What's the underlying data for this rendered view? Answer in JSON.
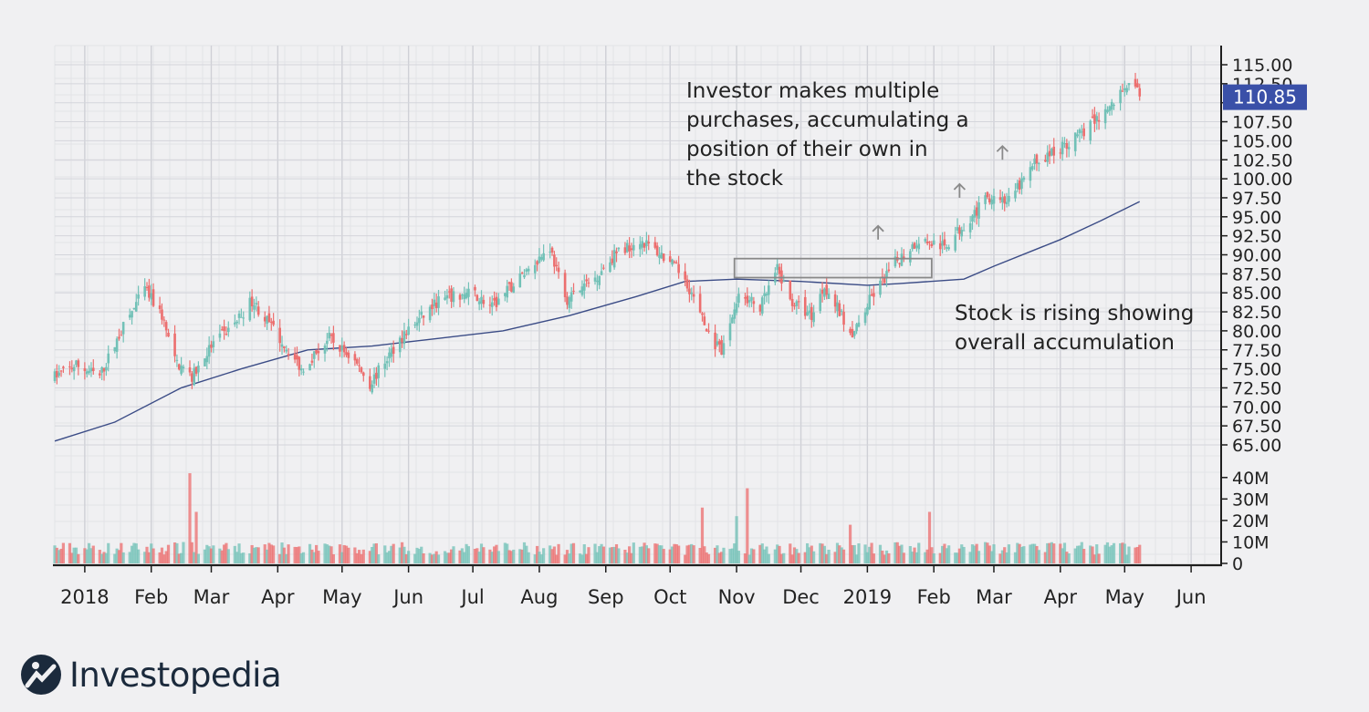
{
  "logo": {
    "wordmark": "Investopedia",
    "icon": "investopedia-logo-icon"
  },
  "annotations": {
    "purchases": "Investor makes multiple\npurchases, accumulating a\nposition of their own in\nthe stock",
    "rising": "Stock is rising showing\noverall accumulation"
  },
  "colors": {
    "up": "#72c1b7",
    "down": "#ec6e6e",
    "ma": "#3b4c86",
    "price_tag": "#3a50a8",
    "grid": "#d6d7dc",
    "axis": "#1e1e1e"
  },
  "chart_data": {
    "type": "candlestick",
    "title": "",
    "xlabel": "",
    "ylabel": "",
    "price_axis": {
      "ylim": [
        65,
        115
      ],
      "ticks": [
        "115.00",
        "112.50",
        "110.00",
        "107.50",
        "105.00",
        "102.50",
        "100.00",
        "97.50",
        "95.00",
        "92.50",
        "90.00",
        "87.50",
        "85.00",
        "82.50",
        "80.00",
        "77.50",
        "75.00",
        "72.50",
        "70.00",
        "67.50",
        "65.00"
      ],
      "last_price_label": "110.85",
      "last_price": 110.85
    },
    "volume_axis": {
      "ylim": [
        0,
        45
      ],
      "unit": "M",
      "ticks": [
        "40M",
        "30M",
        "20M",
        "10M",
        "0"
      ]
    },
    "time_axis": {
      "start": "2017-12-18",
      "end": "2019-06-15",
      "ticks": [
        {
          "label": "2018",
          "date": "2018-01-01"
        },
        {
          "label": "Feb",
          "date": "2018-02-01"
        },
        {
          "label": "Mar",
          "date": "2018-03-01"
        },
        {
          "label": "Apr",
          "date": "2018-04-01"
        },
        {
          "label": "May",
          "date": "2018-05-01"
        },
        {
          "label": "Jun",
          "date": "2018-06-01"
        },
        {
          "label": "Jul",
          "date": "2018-07-01"
        },
        {
          "label": "Aug",
          "date": "2018-08-01"
        },
        {
          "label": "Sep",
          "date": "2018-09-01"
        },
        {
          "label": "Oct",
          "date": "2018-10-01"
        },
        {
          "label": "Nov",
          "date": "2018-11-01"
        },
        {
          "label": "Dec",
          "date": "2018-12-01"
        },
        {
          "label": "2019",
          "date": "2019-01-01"
        },
        {
          "label": "Feb",
          "date": "2019-02-01"
        },
        {
          "label": "Mar",
          "date": "2019-03-01"
        },
        {
          "label": "Apr",
          "date": "2019-04-01"
        },
        {
          "label": "May",
          "date": "2019-05-01"
        },
        {
          "label": "Jun",
          "date": "2019-06-01"
        }
      ]
    },
    "close_trend": [
      [
        "2017-12-18",
        74
      ],
      [
        "2017-12-28",
        75.5
      ],
      [
        "2018-01-08",
        74
      ],
      [
        "2018-01-18",
        80
      ],
      [
        "2018-01-29",
        85.5
      ],
      [
        "2018-02-06",
        82
      ],
      [
        "2018-02-12",
        76
      ],
      [
        "2018-02-20",
        74
      ],
      [
        "2018-03-01",
        78
      ],
      [
        "2018-03-12",
        81
      ],
      [
        "2018-03-20",
        84
      ],
      [
        "2018-04-02",
        79
      ],
      [
        "2018-04-12",
        75
      ],
      [
        "2018-04-25",
        79
      ],
      [
        "2018-05-07",
        76
      ],
      [
        "2018-05-14",
        73
      ],
      [
        "2018-05-28",
        79
      ],
      [
        "2018-06-15",
        84
      ],
      [
        "2018-07-01",
        85
      ],
      [
        "2018-07-10",
        83
      ],
      [
        "2018-07-26",
        88
      ],
      [
        "2018-08-06",
        91
      ],
      [
        "2018-08-13",
        84
      ],
      [
        "2018-08-27",
        87
      ],
      [
        "2018-09-05",
        90
      ],
      [
        "2018-09-17",
        92
      ],
      [
        "2018-09-27",
        90
      ],
      [
        "2018-10-08",
        87
      ],
      [
        "2018-10-18",
        80
      ],
      [
        "2018-10-25",
        77
      ],
      [
        "2018-11-02",
        85
      ],
      [
        "2018-11-12",
        83
      ],
      [
        "2018-11-20",
        88
      ],
      [
        "2018-11-26",
        84
      ],
      [
        "2018-12-06",
        82
      ],
      [
        "2018-12-12",
        86
      ],
      [
        "2018-12-18",
        83
      ],
      [
        "2018-12-25",
        79
      ],
      [
        "2019-01-02",
        84
      ],
      [
        "2019-01-14",
        89
      ],
      [
        "2019-01-25",
        92
      ],
      [
        "2019-02-06",
        91
      ],
      [
        "2019-02-15",
        94
      ],
      [
        "2019-02-28",
        98
      ],
      [
        "2019-03-08",
        97
      ],
      [
        "2019-03-20",
        102
      ],
      [
        "2019-04-01",
        104
      ],
      [
        "2019-04-15",
        107
      ],
      [
        "2019-04-26",
        110
      ],
      [
        "2019-05-03",
        113
      ],
      [
        "2019-05-08",
        110.85
      ]
    ],
    "moving_average": [
      [
        "2017-12-18",
        65.5
      ],
      [
        "2018-01-15",
        68
      ],
      [
        "2018-02-15",
        72.5
      ],
      [
        "2018-03-15",
        75
      ],
      [
        "2018-04-15",
        77.5
      ],
      [
        "2018-05-15",
        78
      ],
      [
        "2018-06-15",
        79
      ],
      [
        "2018-07-15",
        80
      ],
      [
        "2018-08-15",
        82
      ],
      [
        "2018-09-15",
        84.5
      ],
      [
        "2018-10-08",
        86.5
      ],
      [
        "2018-11-01",
        86.8
      ],
      [
        "2018-12-01",
        86.5
      ],
      [
        "2019-01-01",
        86
      ],
      [
        "2019-01-15",
        86.2
      ],
      [
        "2019-02-15",
        86.8
      ],
      [
        "2019-03-01",
        88.5
      ],
      [
        "2019-04-01",
        92
      ],
      [
        "2019-04-20",
        94.5
      ],
      [
        "2019-05-08",
        97
      ]
    ],
    "volume_spikes": [
      [
        "2018-02-19",
        42
      ],
      [
        "2018-02-22",
        24
      ],
      [
        "2018-10-16",
        26
      ],
      [
        "2018-11-06",
        35
      ],
      [
        "2018-11-01",
        22
      ],
      [
        "2018-10-27",
        20
      ],
      [
        "2018-12-24",
        18
      ],
      [
        "2019-01-30",
        24
      ]
    ],
    "accumulation_box": {
      "x_start": "2018-10-31",
      "x_end": "2019-01-31",
      "y_low": 87,
      "y_high": 89.5
    },
    "breakout_arrows": [
      {
        "date": "2019-01-06",
        "price": 92
      },
      {
        "date": "2019-02-13",
        "price": 97.5
      },
      {
        "date": "2019-03-05",
        "price": 102.5
      }
    ]
  }
}
